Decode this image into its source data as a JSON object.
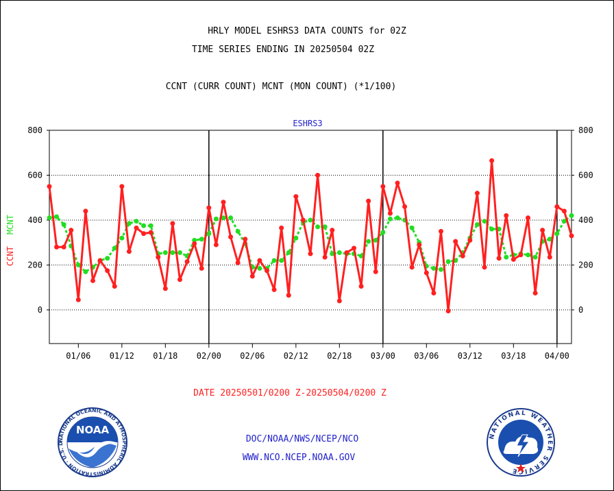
{
  "header": {
    "line1": "HRLY MODEL ESHRS3 DATA COUNTS for 02Z",
    "line2": "TIME SERIES ENDING IN 20250504 02Z",
    "line3": "CCNT (CURR COUNT) MCNT (MON COUNT) (*1/100)"
  },
  "footer": {
    "date_range": "DATE 20250501/0200 Z-20250504/0200 Z",
    "org_path": "DOC/NOAA/NWS/NCEP/NCO",
    "website": "WWW.NCO.NCEP.NOAA.GOV"
  },
  "logos": {
    "left_badge": "NOAA",
    "left_ring": "NATIONAL OCEANIC AND ATMOSPHERIC ADMINISTRATION · U.S. DEPARTMENT OF COMMERCE ·",
    "right_ring": "NATIONAL WEATHER SERVICE"
  },
  "chart_data": {
    "type": "line",
    "title": "ESHRS3",
    "ylabel_ccnt": "CCNT",
    "ylabel_mcnt": "MCNT",
    "ylim": [
      -150,
      800
    ],
    "yticks": [
      0,
      200,
      400,
      600,
      800
    ],
    "x_index_range": [
      0,
      72
    ],
    "xticks": [
      {
        "label": "01/06",
        "index": 4
      },
      {
        "label": "01/12",
        "index": 10
      },
      {
        "label": "01/18",
        "index": 16
      },
      {
        "label": "02/00",
        "index": 22
      },
      {
        "label": "02/06",
        "index": 28
      },
      {
        "label": "02/12",
        "index": 34
      },
      {
        "label": "02/18",
        "index": 40
      },
      {
        "label": "03/00",
        "index": 46
      },
      {
        "label": "03/06",
        "index": 52
      },
      {
        "label": "03/12",
        "index": 58
      },
      {
        "label": "03/18",
        "index": 64
      },
      {
        "label": "04/00",
        "index": 70
      }
    ],
    "day_boundaries": [
      22,
      46,
      70
    ],
    "grid_y": [
      0,
      200,
      400,
      600
    ],
    "colors": {
      "ccnt": "#ff2020",
      "mcnt": "#22dd22",
      "title": "#2222cc",
      "footer_date": "#ff2020",
      "footer_links": "#2222cc",
      "axis": "#000000"
    },
    "series": [
      {
        "name": "CCNT",
        "values": [
          550,
          280,
          280,
          355,
          45,
          440,
          130,
          220,
          175,
          105,
          550,
          260,
          365,
          340,
          345,
          235,
          95,
          385,
          135,
          215,
          295,
          185,
          455,
          290,
          480,
          325,
          210,
          315,
          150,
          220,
          175,
          90,
          365,
          65,
          505,
          400,
          250,
          600,
          235,
          355,
          40,
          255,
          275,
          105,
          485,
          170,
          550,
          430,
          565,
          460,
          190,
          290,
          165,
          75,
          350,
          -5,
          305,
          240,
          310,
          520,
          190,
          665,
          230,
          420,
          225,
          245,
          410,
          75,
          355,
          235,
          460,
          440,
          330
        ]
      },
      {
        "name": "MCNT",
        "values": [
          410,
          415,
          380,
          285,
          200,
          170,
          190,
          220,
          230,
          275,
          320,
          385,
          395,
          375,
          375,
          250,
          255,
          255,
          255,
          240,
          310,
          315,
          340,
          405,
          410,
          410,
          350,
          295,
          190,
          185,
          185,
          220,
          220,
          255,
          320,
          390,
          400,
          370,
          370,
          250,
          255,
          250,
          250,
          240,
          305,
          310,
          345,
          405,
          410,
          400,
          365,
          300,
          195,
          185,
          180,
          215,
          220,
          255,
          320,
          380,
          395,
          360,
          360,
          235,
          245,
          250,
          245,
          235,
          305,
          315,
          340,
          395,
          420
        ]
      }
    ]
  }
}
